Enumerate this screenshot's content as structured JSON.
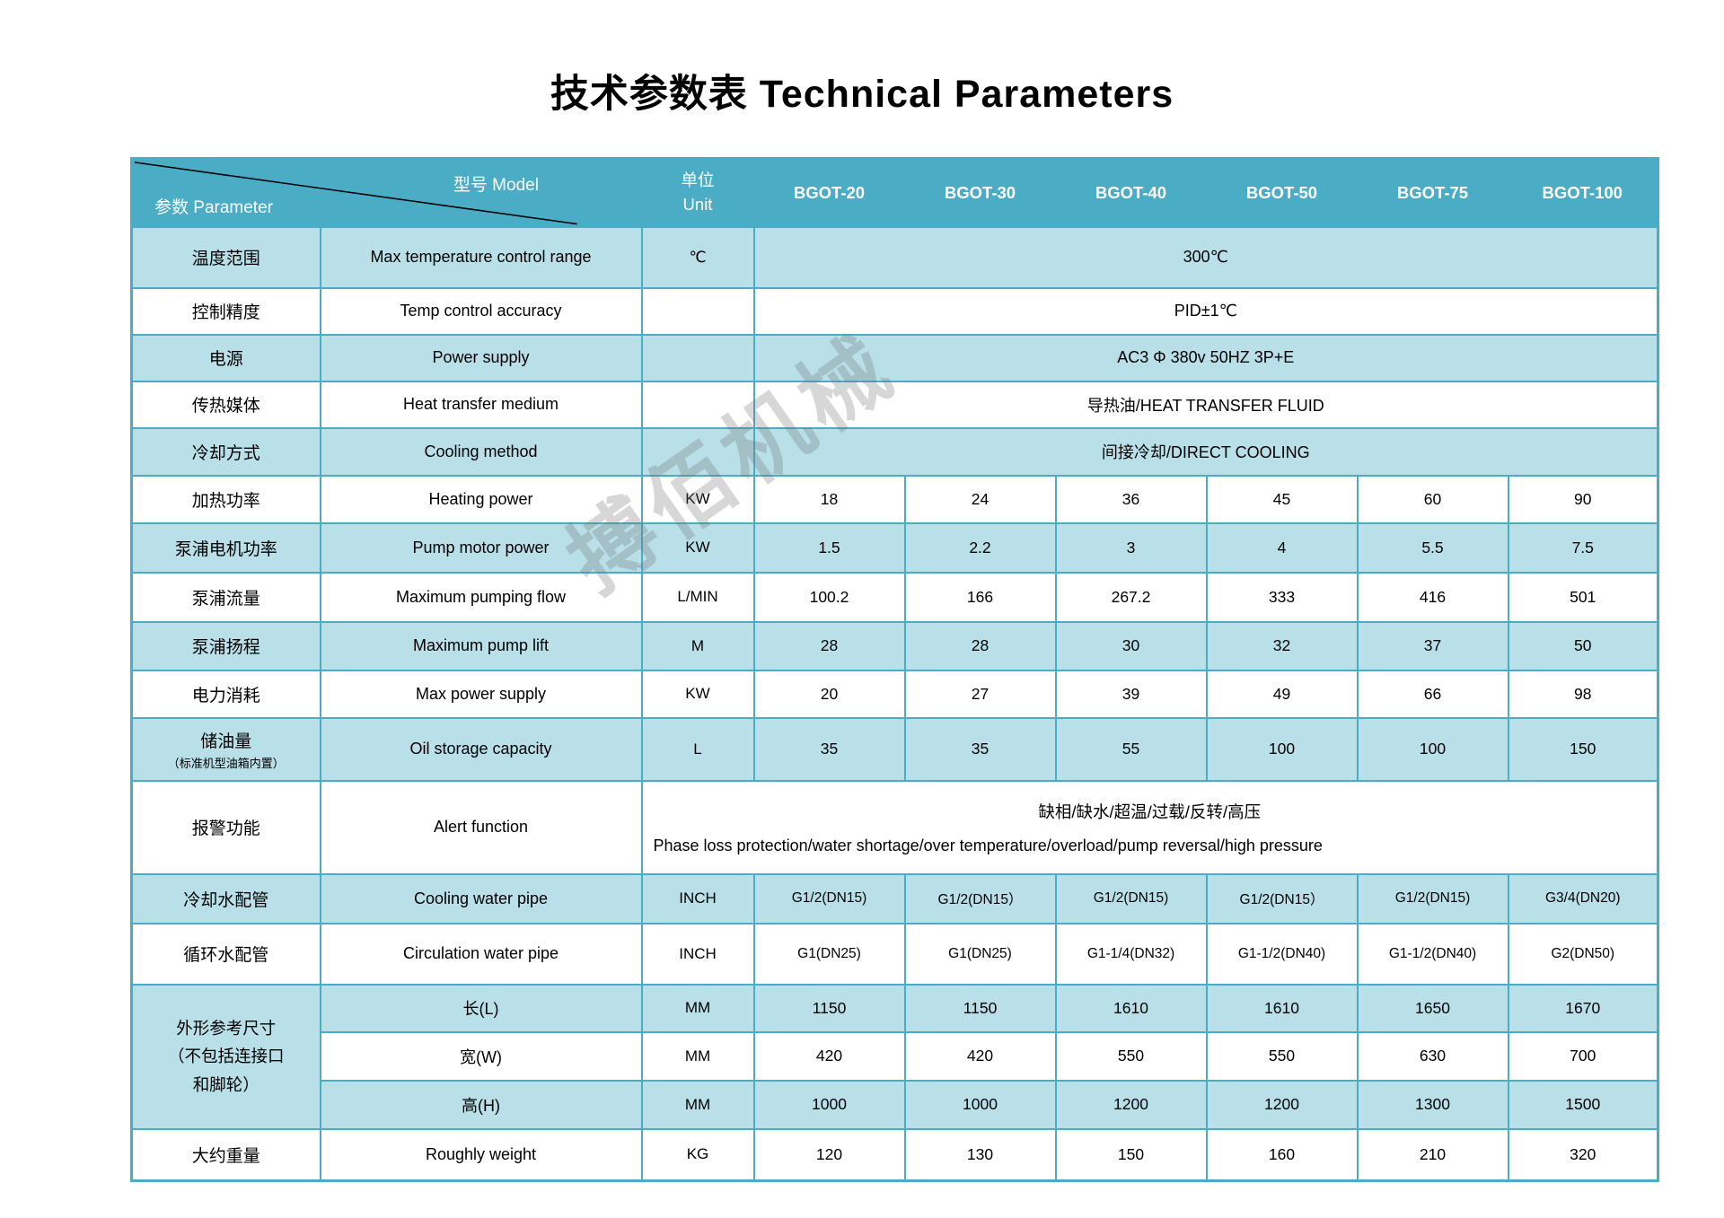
{
  "title": "技术参数表 Technical Parameters",
  "watermark": "搏佰机械",
  "colors": {
    "header_bg": "#4BACC6",
    "row_alt_bg": "#B9DFE9",
    "row_bg": "#FFFFFF",
    "border": "#4BACC6",
    "header_text": "#FFFFFF",
    "body_text": "#000000"
  },
  "table": {
    "corner": {
      "model_label": "型号 Model",
      "parameter_label": "参数 Parameter"
    },
    "unit_header": {
      "zh": "单位",
      "en": "Unit"
    },
    "models": [
      "BGOT-20",
      "BGOT-30",
      "BGOT-40",
      "BGOT-50",
      "BGOT-75",
      "BGOT-100"
    ],
    "rows": [
      {
        "zh": "温度范围",
        "en": "Max temperature control range",
        "unit": "℃",
        "value": "300℃"
      },
      {
        "zh": "控制精度",
        "en": "Temp control accuracy",
        "unit": "",
        "value": "PID±1℃"
      },
      {
        "zh": "电源",
        "en": "Power supply",
        "unit": "",
        "value": "AC3 Φ 380v 50HZ 3P+E"
      },
      {
        "zh": "传热媒体",
        "en": "Heat transfer medium",
        "unit": "",
        "value": "导热油/HEAT TRANSFER FLUID"
      },
      {
        "zh": "冷却方式",
        "en": "Cooling method",
        "unit": "",
        "value": "间接冷却/DIRECT COOLING"
      },
      {
        "zh": "加热功率",
        "en": "Heating power",
        "unit": "KW",
        "values": [
          "18",
          "24",
          "36",
          "45",
          "60",
          "90"
        ]
      },
      {
        "zh": "泵浦电机功率",
        "en": "Pump motor power",
        "unit": "KW",
        "values": [
          "1.5",
          "2.2",
          "3",
          "4",
          "5.5",
          "7.5"
        ]
      },
      {
        "zh": "泵浦流量",
        "en": "Maximum pumping flow",
        "unit": "L/MIN",
        "values": [
          "100.2",
          "166",
          "267.2",
          "333",
          "416",
          "501"
        ]
      },
      {
        "zh": "泵浦扬程",
        "en": "Maximum pump lift",
        "unit": "M",
        "values": [
          "28",
          "28",
          "30",
          "32",
          "37",
          "50"
        ]
      },
      {
        "zh": "电力消耗",
        "en": "Max power supply",
        "unit": "KW",
        "values": [
          "20",
          "27",
          "39",
          "49",
          "66",
          "98"
        ]
      },
      {
        "zh": "储油量",
        "zh_note": "（标准机型油箱内置）",
        "en": "Oil storage capacity",
        "unit": "L",
        "values": [
          "35",
          "35",
          "55",
          "100",
          "100",
          "150"
        ]
      },
      {
        "zh": "报警功能",
        "en": "Alert function",
        "alert_zh": "缺相/缺水/超温/过载/反转/高压",
        "alert_en": "Phase loss protection/water shortage/over temperature/overload/pump reversal/high pressure"
      },
      {
        "zh": "冷却水配管",
        "en": "Cooling water pipe",
        "unit": "INCH",
        "values": [
          "G1/2(DN15)",
          "G1/2(DN15）",
          "G1/2(DN15)",
          "G1/2(DN15）",
          "G1/2(DN15)",
          "G3/4(DN20)"
        ]
      },
      {
        "zh": "循环水配管",
        "en": "Circulation water pipe",
        "unit": "INCH",
        "values": [
          "G1(DN25)",
          "G1(DN25)",
          "G1-1/4(DN32)",
          "G1-1/2(DN40)",
          "G1-1/2(DN40)",
          "G2(DN50)"
        ]
      },
      {
        "zh": "外形参考尺寸\n（不包括连接口\n和脚轮）",
        "subrows": [
          {
            "label": "长(L)",
            "unit": "MM",
            "values": [
              "1150",
              "1150",
              "1610",
              "1610",
              "1650",
              "1670"
            ]
          },
          {
            "label": "宽(W)",
            "unit": "MM",
            "values": [
              "420",
              "420",
              "550",
              "550",
              "630",
              "700"
            ]
          },
          {
            "label": "高(H)",
            "unit": "MM",
            "values": [
              "1000",
              "1000",
              "1200",
              "1200",
              "1300",
              "1500"
            ]
          }
        ]
      },
      {
        "zh": "大约重量",
        "en": "Roughly weight",
        "unit": "KG",
        "values": [
          "120",
          "130",
          "150",
          "160",
          "210",
          "320"
        ]
      }
    ]
  }
}
